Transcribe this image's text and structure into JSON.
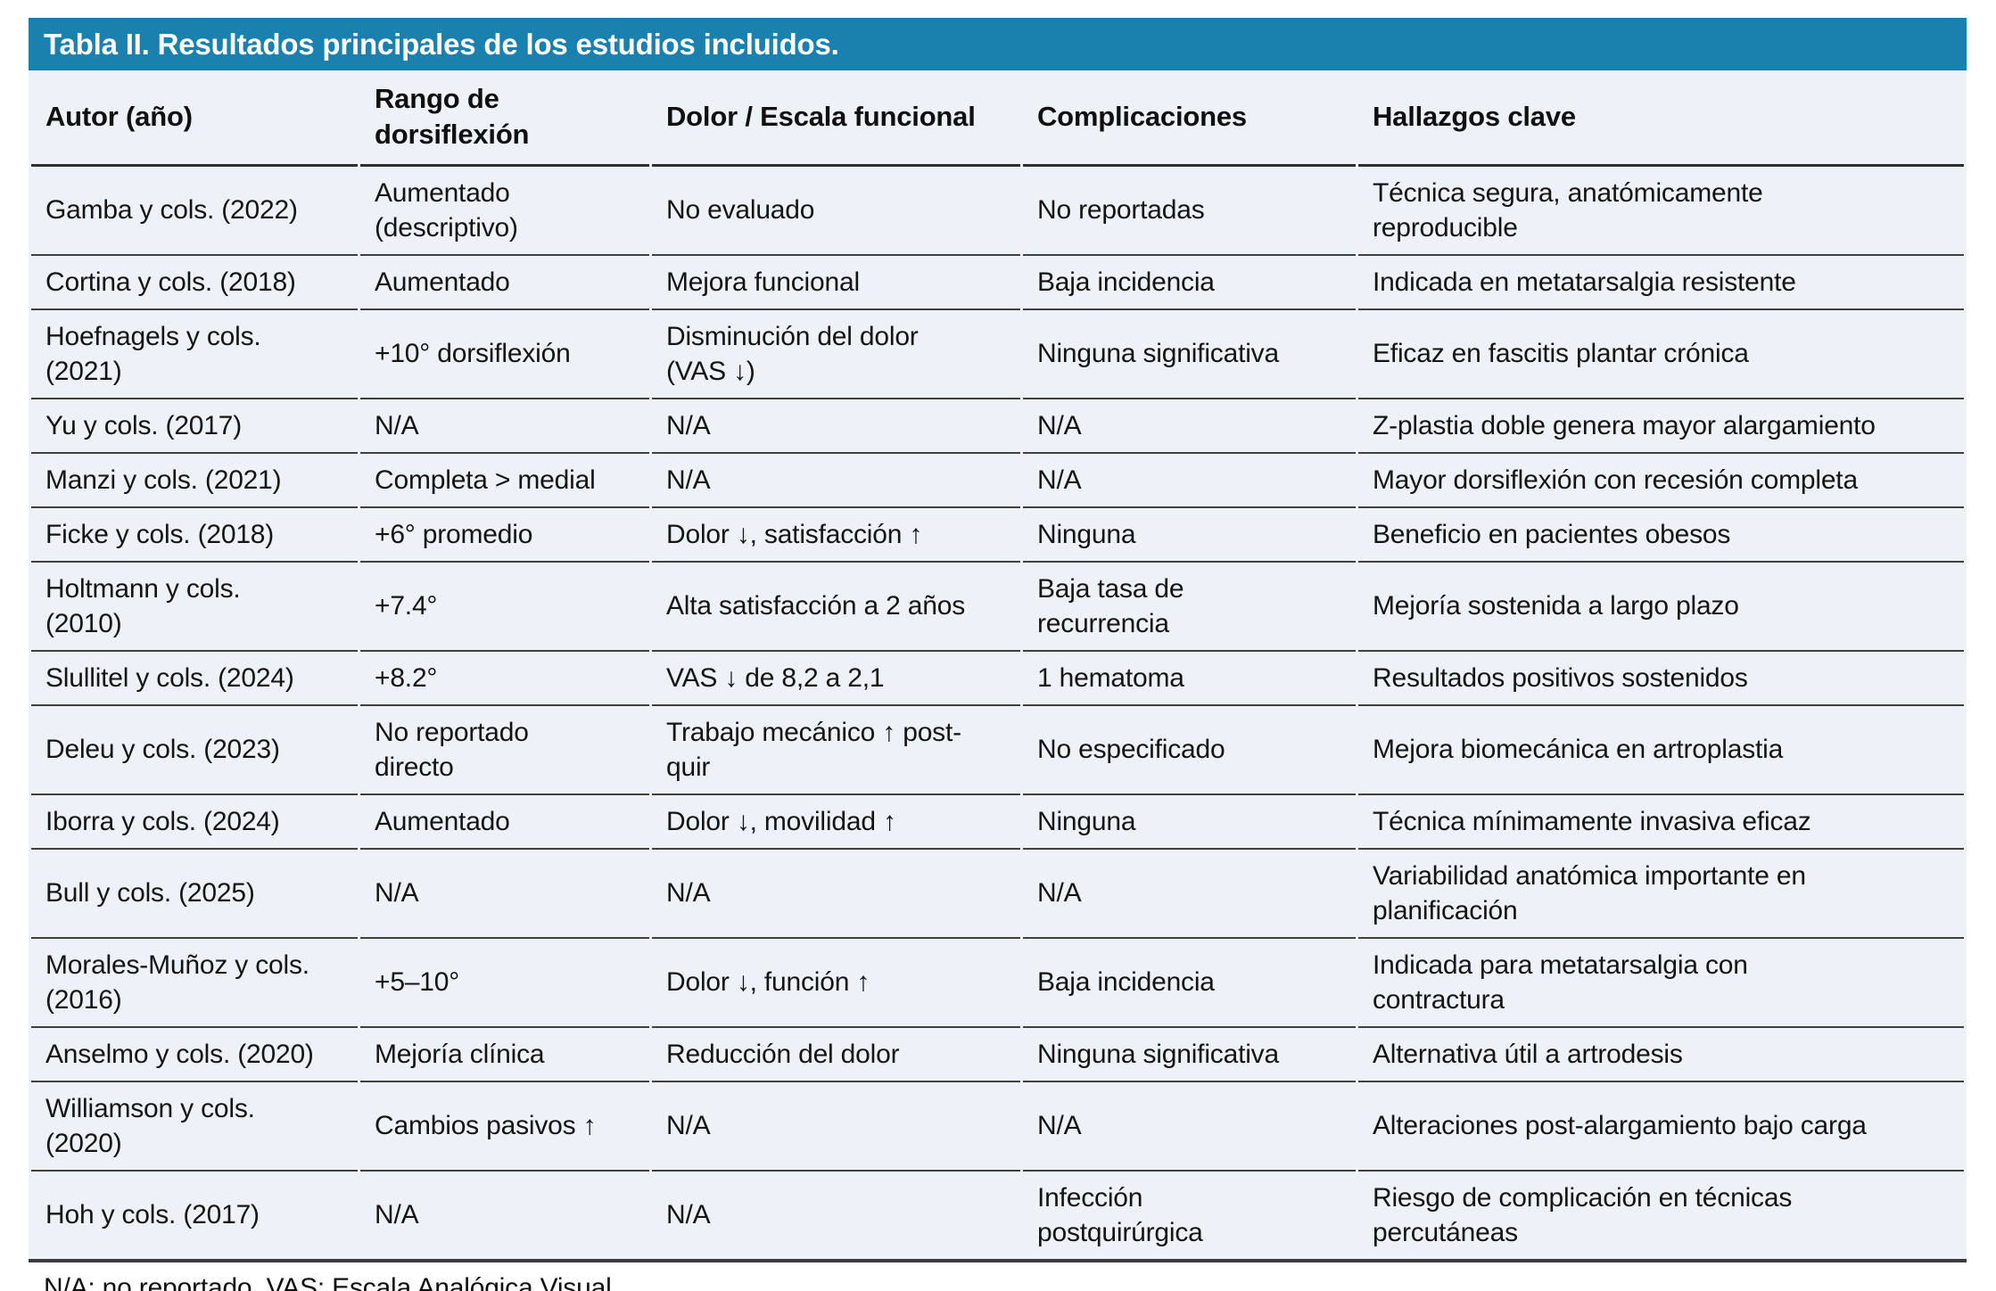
{
  "accent_color": "#1a81ae",
  "row_background": "#edf1f8",
  "title": "Tabla II. Resultados principales de los estudios incluidos.",
  "table": {
    "columns": [
      "Autor (año)",
      "Rango de\ndorsiflexión",
      "Dolor / Escala funcional",
      "Complicaciones",
      "Hallazgos clave"
    ],
    "rows": [
      [
        "Gamba y cols. (2022)",
        "Aumentado\n(descriptivo)",
        "No evaluado",
        "No reportadas",
        "Técnica segura, anatómicamente\nreproducible"
      ],
      [
        "Cortina y cols. (2018)",
        "Aumentado",
        "Mejora funcional",
        "Baja incidencia",
        "Indicada en metatarsalgia resistente"
      ],
      [
        "Hoefnagels y cols.\n(2021)",
        "+10° dorsiflexión",
        "Disminución del dolor\n(VAS ↓)",
        "Ninguna significativa",
        "Eficaz en fascitis plantar crónica"
      ],
      [
        "Yu y cols. (2017)",
        "N/A",
        "N/A",
        "N/A",
        "Z-plastia doble genera mayor alargamiento"
      ],
      [
        "Manzi y cols. (2021)",
        "Completa > medial",
        "N/A",
        "N/A",
        "Mayor dorsiflexión con recesión completa"
      ],
      [
        "Ficke y cols. (2018)",
        "+6° promedio",
        "Dolor ↓, satisfacción ↑",
        "Ninguna",
        "Beneficio en pacientes obesos"
      ],
      [
        "Holtmann y cols.\n(2010)",
        "+7.4°",
        "Alta satisfacción a 2 años",
        "Baja tasa de\nrecurrencia",
        "Mejoría sostenida a largo plazo"
      ],
      [
        "Slullitel y cols. (2024)",
        "+8.2°",
        "VAS ↓ de 8,2 a 2,1",
        "1 hematoma",
        "Resultados positivos sostenidos"
      ],
      [
        "Deleu y cols. (2023)",
        "No reportado\ndirecto",
        "Trabajo mecánico ↑ post-\nquir",
        "No especificado",
        "Mejora biomecánica en artroplastia"
      ],
      [
        "Iborra y cols. (2024)",
        "Aumentado",
        "Dolor ↓, movilidad ↑",
        "Ninguna",
        "Técnica mínimamente invasiva eficaz"
      ],
      [
        "Bull y cols. (2025)",
        "N/A",
        "N/A",
        "N/A",
        "Variabilidad anatómica importante en\nplanificación"
      ],
      [
        "Morales-Muñoz y cols.\n(2016)",
        "+5–10°",
        "Dolor ↓, función ↑",
        "Baja incidencia",
        "Indicada para metatarsalgia con\ncontractura"
      ],
      [
        "Anselmo y cols. (2020)",
        "Mejoría clínica",
        "Reducción del dolor",
        "Ninguna significativa",
        "Alternativa útil a artrodesis"
      ],
      [
        "Williamson y cols.\n(2020)",
        "Cambios pasivos ↑",
        "N/A",
        "N/A",
        "Alteraciones post-alargamiento bajo carga"
      ],
      [
        "Hoh y cols. (2017)",
        "N/A",
        "N/A",
        "Infección\npostquirúrgica",
        "Riesgo de complicación en técnicas\npercutáneas"
      ]
    ]
  },
  "footnote": "N/A: no reportado. VAS: Escala Analógica Visual."
}
